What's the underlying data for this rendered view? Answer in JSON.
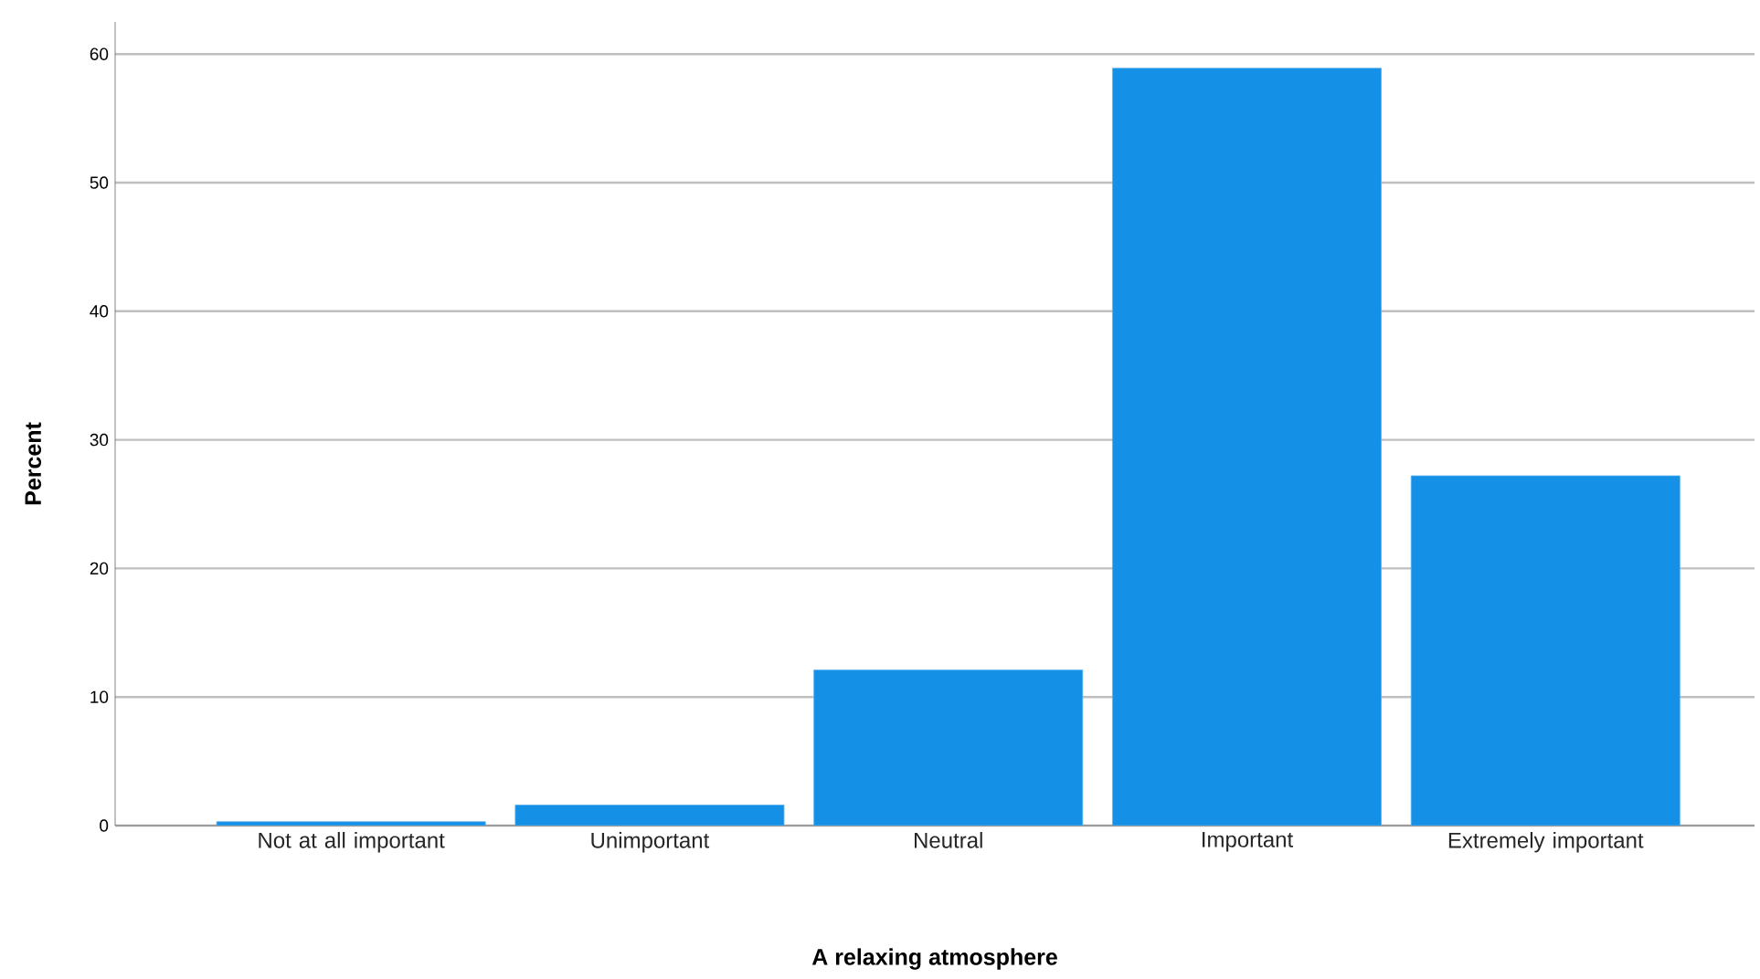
{
  "chart_data": {
    "type": "bar",
    "xlabel": "A relaxing atmosphere",
    "ylabel": "Percent",
    "categories": [
      "Not at all important",
      "Unimportant",
      "Neutral",
      "Important",
      "Extremely important"
    ],
    "values": [
      0.3,
      1.6,
      12.1,
      58.9,
      27.2
    ],
    "color": "#1490e6",
    "ylim": [
      0,
      62.5
    ],
    "yticks": [
      0,
      10,
      20,
      30,
      40,
      50,
      60
    ],
    "grid": "y"
  }
}
